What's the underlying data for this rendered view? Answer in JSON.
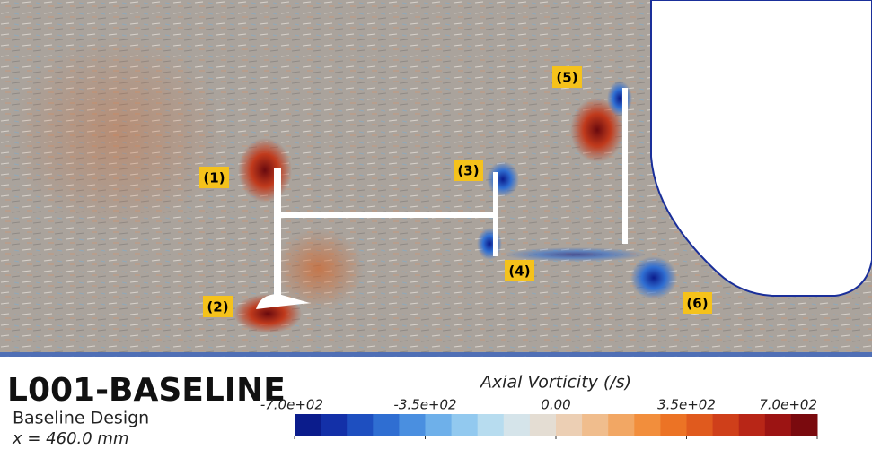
{
  "header": {
    "title": "L001-BASELINE",
    "subtitle": "Baseline Design",
    "position": "x = 460.0 mm"
  },
  "colorbar": {
    "title": "Axial Vorticity (/s)",
    "lim": [
      -700,
      700
    ],
    "ticks": [
      {
        "value": -700,
        "label": "-7.0e+02"
      },
      {
        "value": -350,
        "label": "-3.5e+02"
      },
      {
        "value": 0,
        "label": "0.00"
      },
      {
        "value": 350,
        "label": "3.5e+02"
      },
      {
        "value": 700,
        "label": "7.0e+02"
      }
    ],
    "colors": [
      "#0b1c8c",
      "#1330a8",
      "#1e4fc0",
      "#2f6ed2",
      "#4a8fe0",
      "#6eb0ea",
      "#92c9ef",
      "#b7dcef",
      "#d5e4ea",
      "#e4ddd3",
      "#eccfb4",
      "#f0bd8d",
      "#f2a764",
      "#f28e3c",
      "#ec7325",
      "#e05a1e",
      "#cf3f1a",
      "#b82617",
      "#9c1413",
      "#7a0a0e"
    ]
  },
  "labels": [
    "(1)",
    "(2)",
    "(3)",
    "(4)",
    "(5)",
    "(6)"
  ]
}
